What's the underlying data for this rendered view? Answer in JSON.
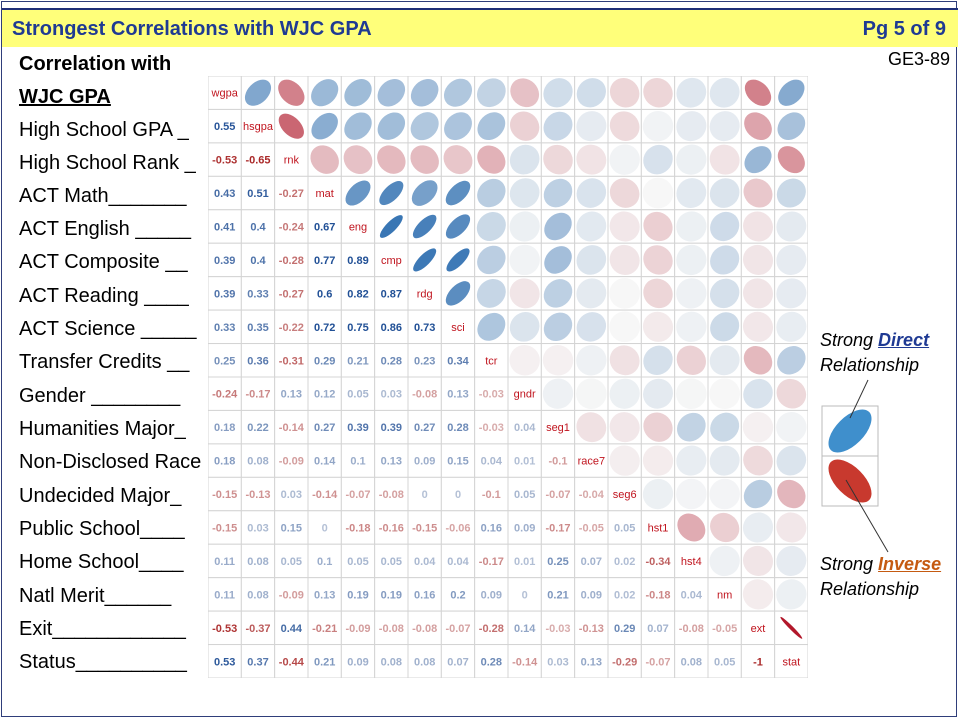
{
  "header": {
    "title": "Strongest Correlations with WJC GPA",
    "page": "Pg 5 of 9",
    "doc_code": "GE3-89"
  },
  "left_heading": [
    "Correlation with",
    "WJC GPA"
  ],
  "left_rows": [
    "High School GPA _",
    "High School Rank _",
    "ACT Math_______",
    "ACT English _____",
    "ACT Composite __",
    "ACT Reading ____",
    "ACT Science _____",
    "Transfer Credits __",
    "Gender ________",
    "Humanities Major_",
    "Non-Disclosed Race",
    "Undecided Major_",
    "Public School____",
    "Home School____",
    "Natl Merit______",
    "Exit____________",
    "Status__________"
  ],
  "legend": {
    "direct_pre": "Strong ",
    "direct_kw": "Direct",
    "direct_post": "Relationship",
    "inverse_pre": "Strong ",
    "inverse_kw": "Inverse",
    "inverse_post": "Relationship"
  },
  "colors": {
    "positive": "#2166ac",
    "negative": "#b2182b",
    "header_bg": "#ffff7a",
    "title": "#1f3a93",
    "direct_kw": "#1f3a93",
    "inverse_kw": "#c55a11"
  },
  "chart_data": {
    "type": "heatmap",
    "subtype": "correlation-matrix",
    "lower": "numbers",
    "upper": "ellipses",
    "variables": [
      "wgpa",
      "hsgpa",
      "rnk",
      "mat",
      "eng",
      "cmp",
      "rdg",
      "sci",
      "tcr",
      "gndr",
      "seg1",
      "race7",
      "seg6",
      "hst1",
      "hst4",
      "nm",
      "ext",
      "stat"
    ],
    "matrix": [
      [
        1,
        0.55,
        -0.53,
        0.43,
        0.41,
        0.39,
        0.39,
        0.33,
        0.25,
        -0.24,
        0.18,
        0.18,
        -0.15,
        -0.15,
        0.11,
        0.11,
        -0.53,
        0.53
      ],
      [
        0.55,
        1,
        -0.65,
        0.51,
        0.4,
        0.4,
        0.33,
        0.35,
        0.36,
        -0.17,
        0.22,
        0.08,
        -0.13,
        0.03,
        0.08,
        0.08,
        -0.37,
        0.37
      ],
      [
        -0.53,
        -0.65,
        1,
        -0.27,
        -0.24,
        -0.28,
        -0.27,
        -0.22,
        -0.31,
        0.13,
        -0.14,
        -0.09,
        0.03,
        0.15,
        0.05,
        -0.09,
        0.44,
        -0.44
      ],
      [
        0.43,
        0.51,
        -0.27,
        1,
        0.67,
        0.77,
        0.6,
        0.72,
        0.29,
        0.12,
        0.27,
        0.14,
        -0.14,
        0,
        0.1,
        0.13,
        -0.21,
        0.21
      ],
      [
        0.41,
        0.4,
        -0.24,
        0.67,
        1,
        0.89,
        0.82,
        0.75,
        0.21,
        0.05,
        0.39,
        0.1,
        -0.07,
        -0.18,
        0.05,
        0.19,
        -0.09,
        0.09
      ],
      [
        0.39,
        0.4,
        -0.28,
        0.77,
        0.89,
        1,
        0.87,
        0.86,
        0.28,
        0.03,
        0.39,
        0.13,
        -0.08,
        -0.16,
        0.05,
        0.19,
        -0.08,
        0.08
      ],
      [
        0.39,
        0.33,
        -0.27,
        0.6,
        0.82,
        0.87,
        1,
        0.73,
        0.23,
        -0.08,
        0.27,
        0.09,
        0,
        -0.15,
        0.04,
        0.16,
        -0.08,
        0.08
      ],
      [
        0.33,
        0.35,
        -0.22,
        0.72,
        0.75,
        0.86,
        0.73,
        1,
        0.34,
        0.13,
        0.28,
        0.15,
        0,
        -0.06,
        0.04,
        0.2,
        -0.07,
        0.07
      ],
      [
        0.25,
        0.36,
        -0.31,
        0.29,
        0.21,
        0.28,
        0.23,
        0.34,
        1,
        -0.03,
        -0.03,
        0.04,
        -0.1,
        0.16,
        -0.17,
        0.09,
        -0.28,
        0.28
      ],
      [
        -0.24,
        -0.17,
        0.13,
        0.12,
        0.05,
        0.03,
        -0.08,
        0.13,
        -0.03,
        1,
        0.04,
        0.01,
        0.05,
        0.09,
        0.01,
        0,
        0.14,
        -0.14
      ],
      [
        0.18,
        0.22,
        -0.14,
        0.27,
        0.39,
        0.39,
        0.27,
        0.28,
        -0.03,
        0.04,
        1,
        -0.1,
        -0.07,
        -0.17,
        0.25,
        0.21,
        -0.03,
        0.03
      ],
      [
        0.18,
        0.08,
        -0.09,
        0.14,
        0.1,
        0.13,
        0.09,
        0.15,
        0.04,
        0.01,
        -0.1,
        1,
        -0.04,
        -0.05,
        0.07,
        0.09,
        -0.13,
        0.13
      ],
      [
        -0.15,
        -0.13,
        0.03,
        -0.14,
        -0.07,
        -0.08,
        0,
        0,
        -0.1,
        0.05,
        -0.07,
        -0.04,
        1,
        0.05,
        0.02,
        0.02,
        0.29,
        -0.29
      ],
      [
        -0.15,
        0.03,
        0.15,
        0,
        -0.18,
        -0.16,
        -0.15,
        -0.06,
        0.16,
        0.09,
        -0.17,
        -0.05,
        0.05,
        1,
        -0.34,
        -0.18,
        0.07,
        -0.07
      ],
      [
        0.11,
        0.08,
        0.05,
        0.1,
        0.05,
        0.05,
        0.04,
        0.04,
        -0.17,
        0.01,
        0.25,
        0.07,
        0.02,
        -0.34,
        1,
        0.04,
        -0.08,
        0.08
      ],
      [
        0.11,
        0.08,
        -0.09,
        0.13,
        0.19,
        0.19,
        0.16,
        0.2,
        0.09,
        0,
        0.21,
        0.09,
        0.02,
        -0.18,
        0.04,
        1,
        -0.05,
        0.05
      ],
      [
        -0.53,
        -0.37,
        0.44,
        -0.21,
        -0.09,
        -0.08,
        -0.08,
        -0.07,
        -0.28,
        0.14,
        -0.03,
        -0.13,
        0.29,
        0.07,
        -0.08,
        -0.05,
        1,
        -1
      ],
      [
        0.53,
        0.37,
        -0.44,
        0.21,
        0.09,
        0.08,
        0.08,
        0.07,
        0.28,
        -0.14,
        0.03,
        0.13,
        -0.29,
        -0.07,
        0.08,
        0.05,
        -1,
        1
      ]
    ]
  }
}
